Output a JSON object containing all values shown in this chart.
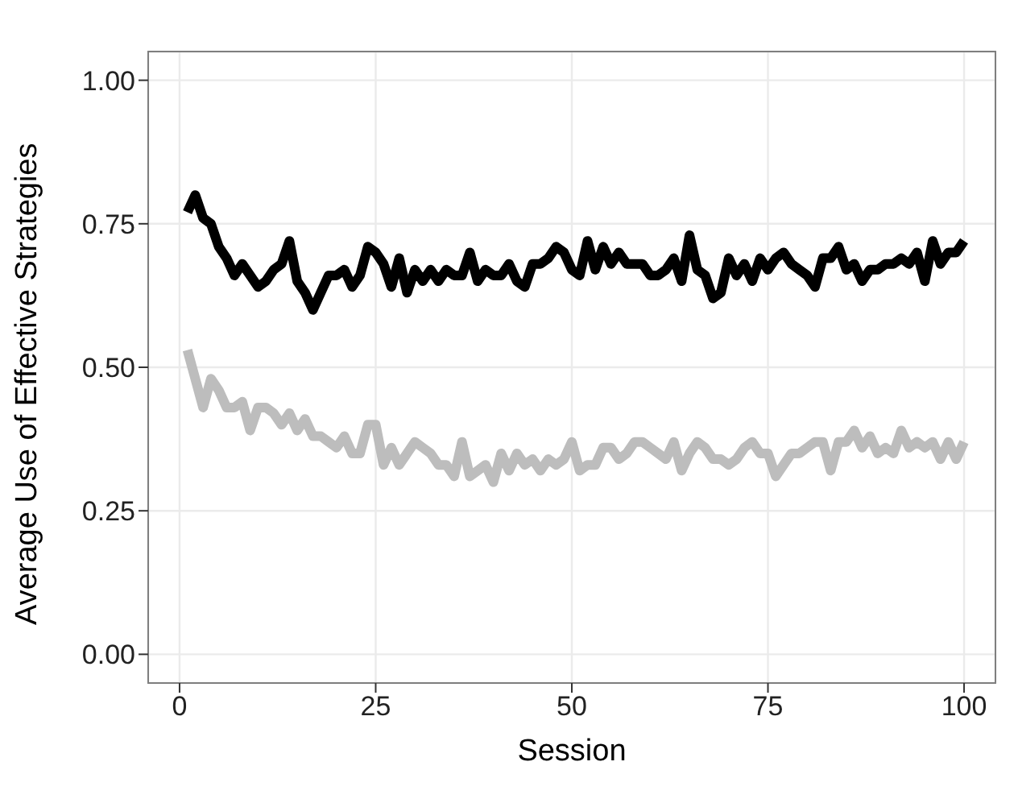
{
  "chart_data": {
    "type": "line",
    "xlabel": "Session",
    "ylabel": "Average Use of Effective Strategies",
    "x": [
      1,
      2,
      3,
      4,
      5,
      6,
      7,
      8,
      9,
      10,
      11,
      12,
      13,
      14,
      15,
      16,
      17,
      18,
      19,
      20,
      21,
      22,
      23,
      24,
      25,
      26,
      27,
      28,
      29,
      30,
      31,
      32,
      33,
      34,
      35,
      36,
      37,
      38,
      39,
      40,
      41,
      42,
      43,
      44,
      45,
      46,
      47,
      48,
      49,
      50,
      51,
      52,
      53,
      54,
      55,
      56,
      57,
      58,
      59,
      60,
      61,
      62,
      63,
      64,
      65,
      66,
      67,
      68,
      69,
      70,
      71,
      72,
      73,
      74,
      75,
      76,
      77,
      78,
      79,
      80,
      81,
      82,
      83,
      84,
      85,
      86,
      87,
      88,
      89,
      90,
      91,
      92,
      93,
      94,
      95,
      96,
      97,
      98,
      99,
      100
    ],
    "series": [
      {
        "color": "#000000",
        "values": [
          0.77,
          0.8,
          0.76,
          0.75,
          0.71,
          0.69,
          0.66,
          0.68,
          0.66,
          0.64,
          0.65,
          0.67,
          0.68,
          0.72,
          0.65,
          0.63,
          0.6,
          0.63,
          0.66,
          0.66,
          0.67,
          0.64,
          0.66,
          0.71,
          0.7,
          0.68,
          0.64,
          0.69,
          0.63,
          0.67,
          0.65,
          0.67,
          0.65,
          0.67,
          0.66,
          0.66,
          0.7,
          0.65,
          0.67,
          0.66,
          0.66,
          0.68,
          0.65,
          0.64,
          0.68,
          0.68,
          0.69,
          0.71,
          0.7,
          0.67,
          0.66,
          0.72,
          0.67,
          0.71,
          0.68,
          0.7,
          0.68,
          0.68,
          0.68,
          0.66,
          0.66,
          0.67,
          0.69,
          0.65,
          0.73,
          0.67,
          0.66,
          0.62,
          0.63,
          0.69,
          0.66,
          0.68,
          0.65,
          0.69,
          0.67,
          0.69,
          0.7,
          0.68,
          0.67,
          0.66,
          0.64,
          0.69,
          0.69,
          0.71,
          0.67,
          0.68,
          0.65,
          0.67,
          0.67,
          0.68,
          0.68,
          0.69,
          0.68,
          0.7,
          0.65,
          0.72,
          0.68,
          0.7,
          0.7,
          0.72
        ]
      },
      {
        "color": "#bdbdbd",
        "values": [
          0.53,
          0.48,
          0.43,
          0.48,
          0.46,
          0.43,
          0.43,
          0.44,
          0.39,
          0.43,
          0.43,
          0.42,
          0.4,
          0.42,
          0.39,
          0.41,
          0.38,
          0.38,
          0.37,
          0.36,
          0.38,
          0.35,
          0.35,
          0.4,
          0.4,
          0.33,
          0.36,
          0.33,
          0.35,
          0.37,
          0.36,
          0.35,
          0.33,
          0.33,
          0.31,
          0.37,
          0.31,
          0.32,
          0.33,
          0.3,
          0.35,
          0.32,
          0.35,
          0.33,
          0.34,
          0.32,
          0.34,
          0.33,
          0.34,
          0.37,
          0.32,
          0.33,
          0.33,
          0.36,
          0.36,
          0.34,
          0.35,
          0.37,
          0.37,
          0.36,
          0.35,
          0.34,
          0.37,
          0.32,
          0.35,
          0.37,
          0.36,
          0.34,
          0.34,
          0.33,
          0.34,
          0.36,
          0.37,
          0.35,
          0.35,
          0.31,
          0.33,
          0.35,
          0.35,
          0.36,
          0.37,
          0.37,
          0.32,
          0.37,
          0.37,
          0.39,
          0.36,
          0.38,
          0.35,
          0.36,
          0.35,
          0.39,
          0.36,
          0.37,
          0.36,
          0.37,
          0.34,
          0.37,
          0.34,
          0.37
        ]
      }
    ],
    "xlim": [
      -4,
      104
    ],
    "xticks": [
      0,
      25,
      50,
      75,
      100
    ],
    "ylim": [
      -0.05,
      1.05
    ],
    "yticks": [
      {
        "value": 0,
        "label": "0.00"
      },
      {
        "value": 0.25,
        "label": "0.25"
      },
      {
        "value": 0.5,
        "label": "0.50"
      },
      {
        "value": 0.75,
        "label": "0.75"
      },
      {
        "value": 1,
        "label": "1.00"
      }
    ],
    "grid": true,
    "line_style": "solid",
    "marker": "none"
  }
}
